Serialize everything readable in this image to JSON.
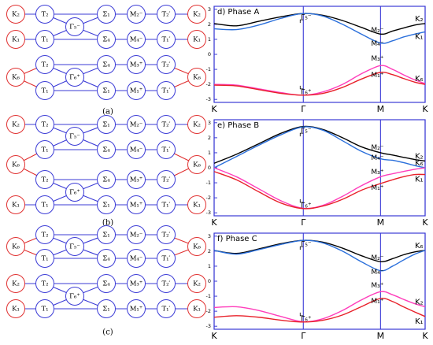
{
  "diagrams": [
    {
      "caption": "(a)",
      "rows": [
        [
          "T₂",
          "Σ₁",
          "M₂⁻",
          "T₂′"
        ],
        [
          "T₁",
          "Σ₄",
          "M₄⁻",
          "T₁′"
        ],
        [
          "T₂",
          "Σ₄",
          "M₃⁺",
          "T₂′"
        ],
        [
          "T₁",
          "Σ₁",
          "M₁⁺",
          "T₁′"
        ]
      ],
      "gammas": [
        "Γ₅⁻",
        "Γ₆⁺"
      ],
      "ks": [
        [
          "K₂",
          "K₂"
        ],
        [
          "K₁",
          "K₁"
        ],
        [
          "K₆",
          "K₆"
        ]
      ]
    },
    {
      "caption": "(b)",
      "rows": [
        [
          "T₂",
          "Σ₁",
          "M₂⁻",
          "T₂′"
        ],
        [
          "T₁",
          "Σ₄",
          "M₄⁻",
          "T₁′"
        ],
        [
          "T₂",
          "Σ₄",
          "M₃⁺",
          "T₂′"
        ],
        [
          "T₁",
          "Σ₁",
          "M₁⁺",
          "T₁′"
        ]
      ],
      "gammas": [
        "Γ₅⁻",
        "Γ₆⁺"
      ],
      "ks": [
        [
          "K₂",
          "K₂"
        ],
        [
          "K₆",
          "K₆"
        ],
        [
          "K₁",
          "K₁"
        ]
      ]
    },
    {
      "caption": "(c)",
      "rows": [
        [
          "T₂",
          "Σ₁",
          "M₂⁻",
          "T₂′"
        ],
        [
          "T₁",
          "Σ₄",
          "M₄⁻",
          "T₁′"
        ],
        [
          "T₂",
          "Σ₄",
          "M₃⁺",
          "T₂′"
        ],
        [
          "T₁",
          "Σ₁",
          "M₁⁺",
          "T₁′"
        ]
      ],
      "gammas": [
        "Γ₅⁻",
        "Γ₆⁺"
      ],
      "ks": [
        [
          "K₆",
          "K₆"
        ],
        [
          "K₂",
          "K₂"
        ],
        [
          "K₁",
          "K₁"
        ]
      ]
    }
  ],
  "chart_data": [
    {
      "type": "line",
      "title": "d) Phase A",
      "x": [
        0,
        0.25,
        0.5,
        0.75,
        1,
        1.22,
        1.44,
        1.65,
        1.866,
        2.0,
        2.12,
        2.25,
        2.366
      ],
      "xlim": [
        0,
        2.366
      ],
      "xticks": [
        {
          "value": 0,
          "label": "K"
        },
        {
          "value": 1,
          "label": "Γ"
        },
        {
          "value": 1.866,
          "label": "M"
        },
        {
          "value": 2.366,
          "label": "K"
        }
      ],
      "ylim": [
        -3.2,
        3.2
      ],
      "yticks": [
        3,
        2,
        1,
        0,
        -1,
        -2,
        -3
      ],
      "annotations": [
        "Γ₅⁻",
        "Γ₆⁺",
        "M₂⁻",
        "M₄⁻",
        "M₃⁺",
        "M₁⁺"
      ],
      "series": [
        {
          "name": "K₂",
          "color": "#000000",
          "values": [
            2.05,
            1.9,
            2.2,
            2.5,
            2.72,
            2.6,
            2.25,
            1.8,
            1.35,
            1.55,
            1.75,
            1.95,
            2.05
          ]
        },
        {
          "name": "K₁",
          "color": "#2a6fdb",
          "values": [
            1.7,
            1.65,
            1.95,
            2.4,
            2.72,
            2.55,
            2.0,
            1.35,
            0.75,
            0.9,
            1.15,
            1.35,
            1.5
          ]
        },
        {
          "name": "K₆",
          "color": "#ff3dbb",
          "values": [
            -2.0,
            -2.05,
            -2.3,
            -2.55,
            -2.72,
            -2.5,
            -2.0,
            -1.3,
            -0.75,
            -1.0,
            -1.35,
            -1.7,
            -1.95
          ]
        },
        {
          "color": "#e8202a",
          "values": [
            -2.05,
            -2.1,
            -2.35,
            -2.6,
            -2.72,
            -2.6,
            -2.2,
            -1.65,
            -1.2,
            -1.35,
            -1.6,
            -1.85,
            -2.0
          ]
        }
      ]
    },
    {
      "type": "line",
      "title": "e) Phase B",
      "x": [
        0,
        0.25,
        0.5,
        0.75,
        1,
        1.22,
        1.44,
        1.65,
        1.866,
        2.0,
        2.12,
        2.25,
        2.366
      ],
      "xlim": [
        0,
        2.366
      ],
      "xticks": [
        {
          "value": 0,
          "label": "K"
        },
        {
          "value": 1,
          "label": "Γ"
        },
        {
          "value": 1.866,
          "label": "M"
        },
        {
          "value": 2.366,
          "label": "K"
        }
      ],
      "ylim": [
        -3.2,
        3.2
      ],
      "yticks": [
        3,
        2,
        1,
        0,
        -1,
        -2,
        -3
      ],
      "annotations": [
        "Γ₅⁻",
        "Γ₆⁺",
        "M₂⁻",
        "M₄⁻",
        "M₃⁺",
        "M₁⁺"
      ],
      "series": [
        {
          "name": "K₂",
          "color": "#000000",
          "values": [
            0.3,
            0.9,
            1.6,
            2.3,
            2.75,
            2.55,
            2.0,
            1.4,
            1.0,
            0.85,
            0.7,
            0.55,
            0.45
          ]
        },
        {
          "color": "#2a6fdb",
          "values": [
            0.0,
            0.75,
            1.5,
            2.2,
            2.72,
            2.5,
            1.8,
            1.1,
            0.6,
            0.5,
            0.35,
            0.15,
            0.0
          ]
        },
        {
          "name": "K₆",
          "color": "#ff3dbb",
          "values": [
            0.0,
            -0.6,
            -1.4,
            -2.2,
            -2.7,
            -2.5,
            -1.9,
            -1.2,
            -0.6,
            -0.4,
            -0.25,
            -0.1,
            0.0
          ]
        },
        {
          "name": "K₁",
          "color": "#e8202a",
          "values": [
            -0.25,
            -0.8,
            -1.6,
            -2.35,
            -2.72,
            -2.55,
            -2.1,
            -1.5,
            -1.05,
            -0.8,
            -0.6,
            -0.45,
            -0.45
          ]
        }
      ]
    },
    {
      "type": "line",
      "title": "f) Phase C",
      "x": [
        0,
        0.25,
        0.5,
        0.75,
        1,
        1.22,
        1.44,
        1.65,
        1.866,
        2.0,
        2.12,
        2.25,
        2.366
      ],
      "xlim": [
        0,
        2.366
      ],
      "xticks": [
        {
          "value": 0,
          "label": "K"
        },
        {
          "value": 1,
          "label": "Γ"
        },
        {
          "value": 1.866,
          "label": "M"
        },
        {
          "value": 2.366,
          "label": "K"
        }
      ],
      "ylim": [
        -3.2,
        3.2
      ],
      "yticks": [
        3,
        2,
        1,
        0,
        -1,
        -2,
        -3
      ],
      "annotations": [
        "Γ₅⁻",
        "Γ₆⁺",
        "M₂⁻",
        "M₄⁻",
        "M₃⁺",
        "M₁⁺"
      ],
      "series": [
        {
          "name": "K₆",
          "color": "#000000",
          "values": [
            2.05,
            1.85,
            2.15,
            2.5,
            2.72,
            2.6,
            2.2,
            1.7,
            1.3,
            1.5,
            1.75,
            1.95,
            2.05
          ]
        },
        {
          "color": "#2a6fdb",
          "values": [
            2.05,
            1.8,
            2.1,
            2.45,
            2.72,
            2.55,
            2.0,
            1.3,
            0.7,
            1.0,
            1.4,
            1.8,
            2.05
          ]
        },
        {
          "name": "K₂",
          "color": "#ff3dbb",
          "values": [
            -1.75,
            -1.7,
            -1.95,
            -2.35,
            -2.7,
            -2.5,
            -1.95,
            -1.25,
            -0.7,
            -0.9,
            -1.2,
            -1.5,
            -1.7
          ]
        },
        {
          "name": "K₁",
          "color": "#e8202a",
          "values": [
            -2.4,
            -2.3,
            -2.4,
            -2.6,
            -2.72,
            -2.6,
            -2.25,
            -1.7,
            -1.15,
            -1.35,
            -1.7,
            -2.05,
            -2.35
          ]
        }
      ]
    }
  ]
}
